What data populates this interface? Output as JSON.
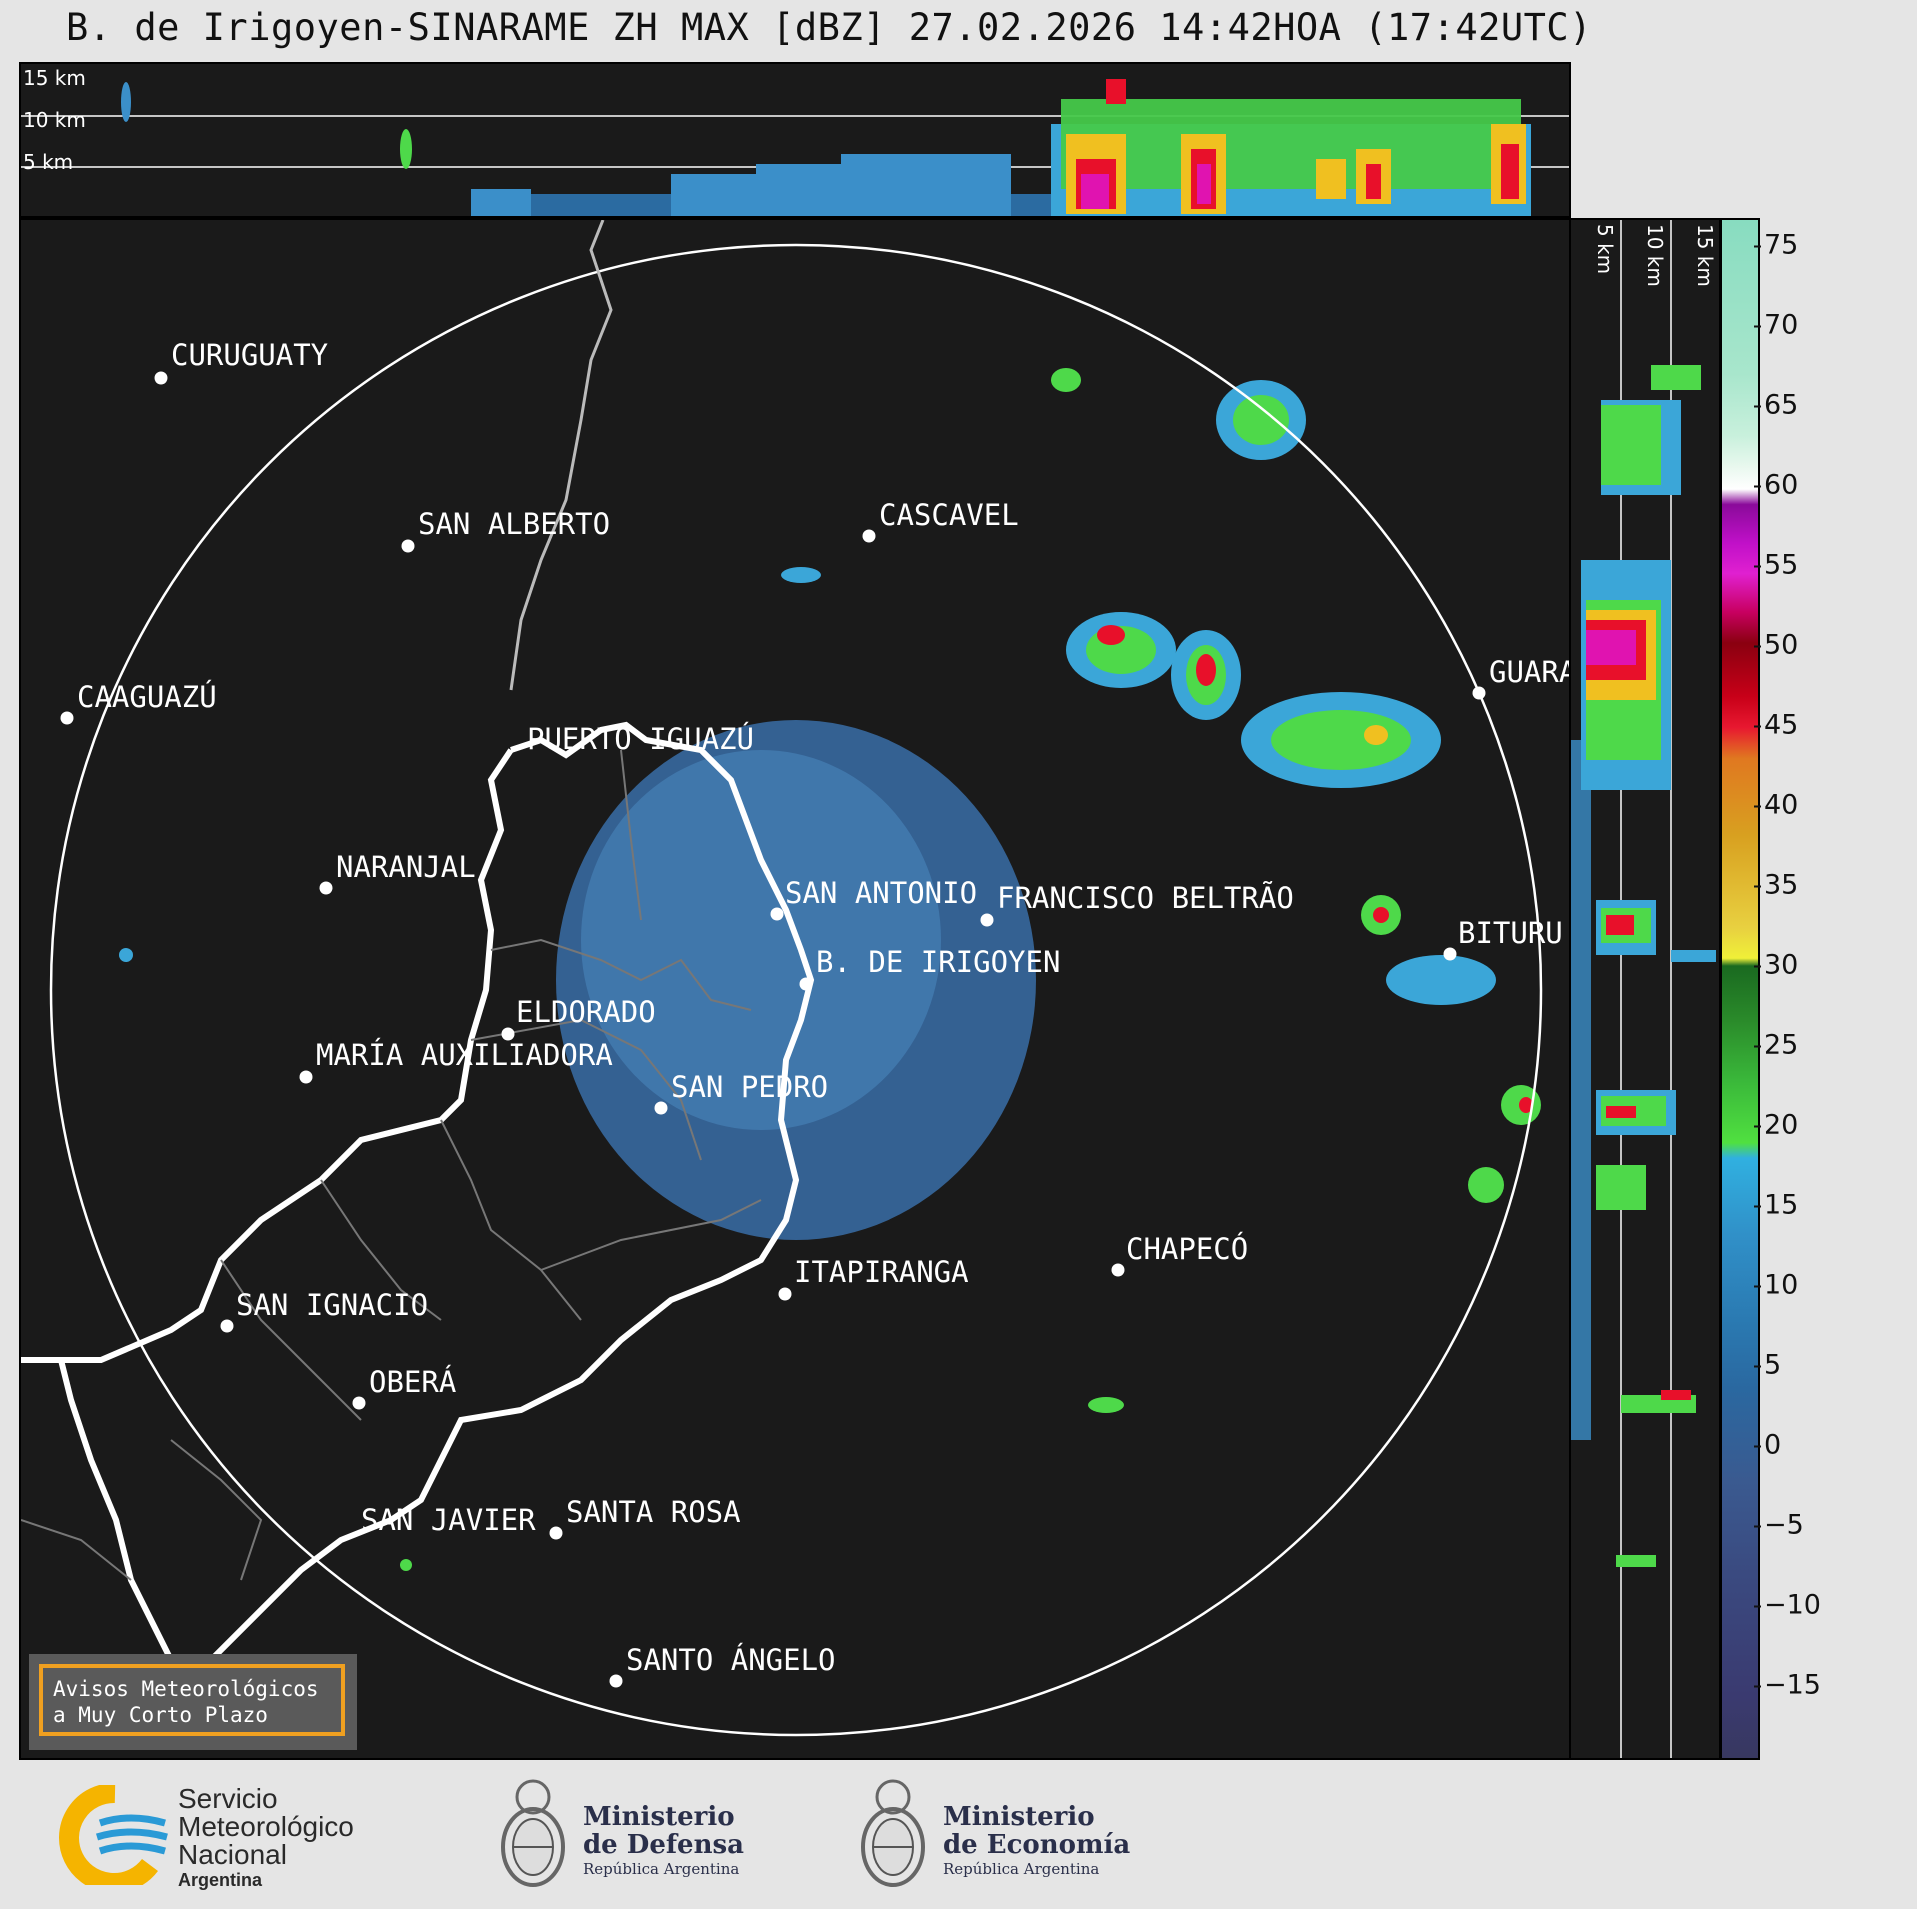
{
  "title": "B. de Irigoyen-SINARAME ZH MAX [dBZ] 27.02.2026 14:42HOA (17:42UTC)",
  "top_heights": [
    "15 km",
    "10 km",
    "5 km"
  ],
  "side_heights": [
    "5 km",
    "10 km",
    "15 km"
  ],
  "colorbar_ticks": [
    "75",
    "70",
    "65",
    "60",
    "55",
    "50",
    "45",
    "40",
    "35",
    "30",
    "25",
    "20",
    "15",
    "10",
    "5",
    "0",
    "−5",
    "−10",
    "−15"
  ],
  "cities": [
    {
      "name": "CURUGUATY"
    },
    {
      "name": "SAN ALBERTO"
    },
    {
      "name": "CASCAVEL"
    },
    {
      "name": "CAAGUAZÚ"
    },
    {
      "name": "GUARA"
    },
    {
      "name": "PUERTO IGUAZÚ"
    },
    {
      "name": "NARANJAL"
    },
    {
      "name": "SAN ANTONIO"
    },
    {
      "name": "FRANCISCO BELTRÃO"
    },
    {
      "name": "BITURU"
    },
    {
      "name": "B. DE IRIGOYEN"
    },
    {
      "name": "ELDORADO"
    },
    {
      "name": "MARÍA AUXILIADORA"
    },
    {
      "name": "SAN PEDRO"
    },
    {
      "name": "CHAPECÓ"
    },
    {
      "name": "ITAPIRANGA"
    },
    {
      "name": "SAN IGNACIO"
    },
    {
      "name": "OBERÁ"
    },
    {
      "name": "SAN JAVIER"
    },
    {
      "name": "SANTA ROSA"
    },
    {
      "name": "SANTO ÁNGELO"
    }
  ],
  "avisos": {
    "line1": "Avisos Meteorológicos",
    "line2": "a Muy Corto Plazo"
  },
  "logos": {
    "smn": {
      "line1": "Servicio",
      "line2": "Meteorológico",
      "line3": "Nacional",
      "line4": "Argentina"
    },
    "defensa": {
      "line1": "Ministerio",
      "line2": "de Defensa",
      "line3": "República Argentina"
    },
    "economia": {
      "line1": "Ministerio",
      "line2": "de Economía",
      "line3": "República Argentina"
    }
  },
  "colors": {
    "panel_bg": "#1a1a1a",
    "frame_bg": "#e5e5e5",
    "avisos_border": "#f0a020",
    "smn_yellow": "#f5b400",
    "smn_blue": "#2a9ad6"
  }
}
